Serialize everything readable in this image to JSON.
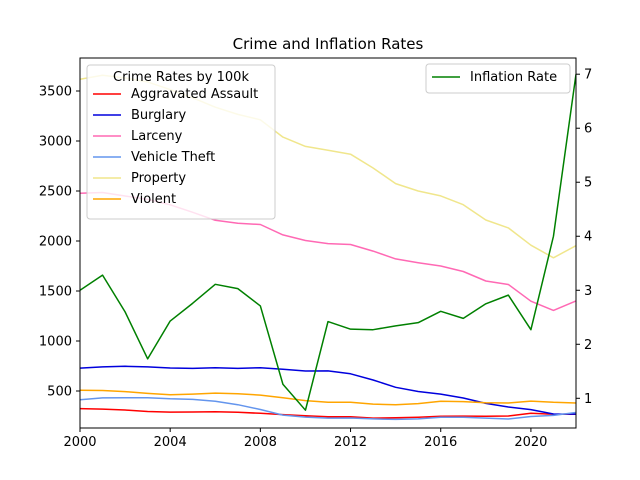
{
  "chart_data": {
    "type": "line",
    "title": "Crime and Inflation Rates",
    "xlabel": "",
    "ylabel": "",
    "xlim": [
      2000,
      2022
    ],
    "ylim": [
      130,
      3830
    ],
    "y2lim": [
      0.45,
      7.3
    ],
    "x_ticks": [
      2000,
      2004,
      2008,
      2012,
      2016,
      2020
    ],
    "y_ticks": [
      500,
      1000,
      1500,
      2000,
      2500,
      3000,
      3500
    ],
    "y2_ticks": [
      1,
      2,
      3,
      4,
      5,
      6,
      7
    ],
    "grid": false,
    "legend_left": {
      "title": "Crime Rates by 100k",
      "placement": "upper-left"
    },
    "legend_right": {
      "placement": "upper-right"
    },
    "x": [
      2000,
      2001,
      2002,
      2003,
      2004,
      2005,
      2006,
      2007,
      2008,
      2009,
      2010,
      2011,
      2012,
      2013,
      2014,
      2015,
      2016,
      2017,
      2018,
      2019,
      2020,
      2021,
      2022
    ],
    "series": [
      {
        "name": "Aggravated Assault",
        "color": "#ff0000",
        "axis": "left",
        "values": [
          324,
          319,
          310,
          295,
          289,
          290,
          292,
          287,
          277,
          264,
          252,
          242,
          242,
          229,
          232,
          238,
          248,
          249,
          247,
          250,
          278,
          268,
          268
        ]
      },
      {
        "name": "Burglary",
        "color": "#0000dd",
        "axis": "left",
        "values": [
          729,
          741,
          747,
          741,
          730,
          726,
          733,
          726,
          733,
          717,
          700,
          701,
          672,
          610,
          537,
          495,
          469,
          430,
          376,
          340,
          314,
          270,
          269
        ]
      },
      {
        "name": "Larceny",
        "color": "#ff69b4",
        "axis": "left",
        "values": [
          2477,
          2485,
          2450,
          2416,
          2362,
          2287,
          2207,
          2177,
          2165,
          2061,
          2005,
          1974,
          1965,
          1899,
          1821,
          1783,
          1750,
          1695,
          1600,
          1565,
          1398,
          1306,
          1401
        ]
      },
      {
        "name": "Vehicle Theft",
        "color": "#6495ed",
        "axis": "left",
        "values": [
          412,
          431,
          433,
          433,
          422,
          416,
          398,
          363,
          315,
          259,
          239,
          229,
          230,
          221,
          216,
          221,
          237,
          238,
          229,
          220,
          245,
          256,
          285
        ]
      },
      {
        "name": "Property",
        "color": "#f0e68c",
        "axis": "left",
        "values": [
          3618,
          3658,
          3630,
          3591,
          3514,
          3432,
          3338,
          3266,
          3212,
          3039,
          2946,
          2908,
          2868,
          2730,
          2574,
          2500,
          2451,
          2363,
          2210,
          2131,
          1958,
          1832,
          1954
        ]
      },
      {
        "name": "Violent",
        "color": "#ffa500",
        "axis": "left",
        "values": [
          507,
          505,
          494,
          476,
          463,
          469,
          479,
          472,
          459,
          432,
          404,
          387,
          387,
          369,
          362,
          374,
          398,
          394,
          383,
          380,
          399,
          387,
          380
        ]
      },
      {
        "name": "Inflation Rate",
        "color": "#008000",
        "axis": "right",
        "values": [
          3.0,
          3.28,
          2.6,
          1.73,
          2.43,
          2.76,
          3.11,
          3.03,
          2.71,
          1.26,
          0.78,
          2.42,
          2.28,
          2.27,
          2.34,
          2.4,
          2.61,
          2.48,
          2.75,
          2.91,
          2.27,
          4.0,
          7.0
        ]
      }
    ]
  }
}
